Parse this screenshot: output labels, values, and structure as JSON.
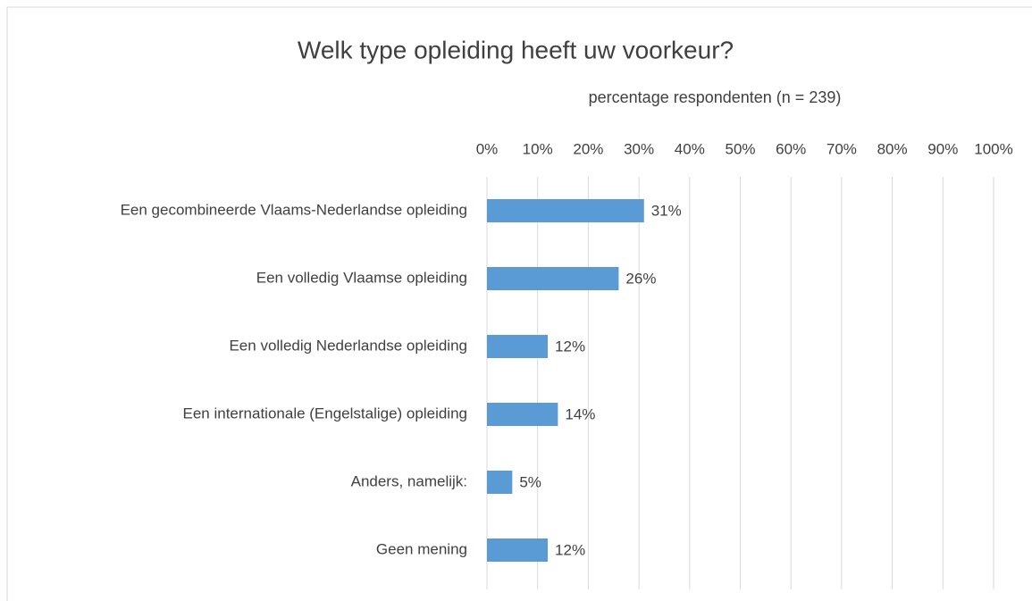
{
  "chart_data": {
    "type": "bar",
    "orientation": "horizontal",
    "title": "Welk type opleiding heeft uw voorkeur?",
    "x_label": "percentage respondenten (n = 239)",
    "categories": [
      "Een gecombineerde Vlaams-Nederlandse opleiding",
      "Een volledig Vlaamse opleiding",
      "Een volledig Nederlandse opleiding",
      "Een internationale (Engelstalige) opleiding",
      "Anders, namelijk:",
      "Geen mening"
    ],
    "values": [
      31,
      26,
      12,
      14,
      5,
      12
    ],
    "value_labels": [
      "31%",
      "26%",
      "12%",
      "14%",
      "5%",
      "12%"
    ],
    "color": "#5b9bd5",
    "xlim": [
      0,
      100
    ],
    "xticks": [
      {
        "value": 0,
        "label": "0%"
      },
      {
        "value": 10,
        "label": "10%"
      },
      {
        "value": 20,
        "label": "20%"
      },
      {
        "value": 30,
        "label": "30%"
      },
      {
        "value": 40,
        "label": "40%"
      },
      {
        "value": 50,
        "label": "50%"
      },
      {
        "value": 60,
        "label": "60%"
      },
      {
        "value": 70,
        "label": "70%"
      },
      {
        "value": 80,
        "label": "80%"
      },
      {
        "value": 90,
        "label": "90%"
      },
      {
        "value": 100,
        "label": "100%"
      }
    ],
    "grid": true
  }
}
